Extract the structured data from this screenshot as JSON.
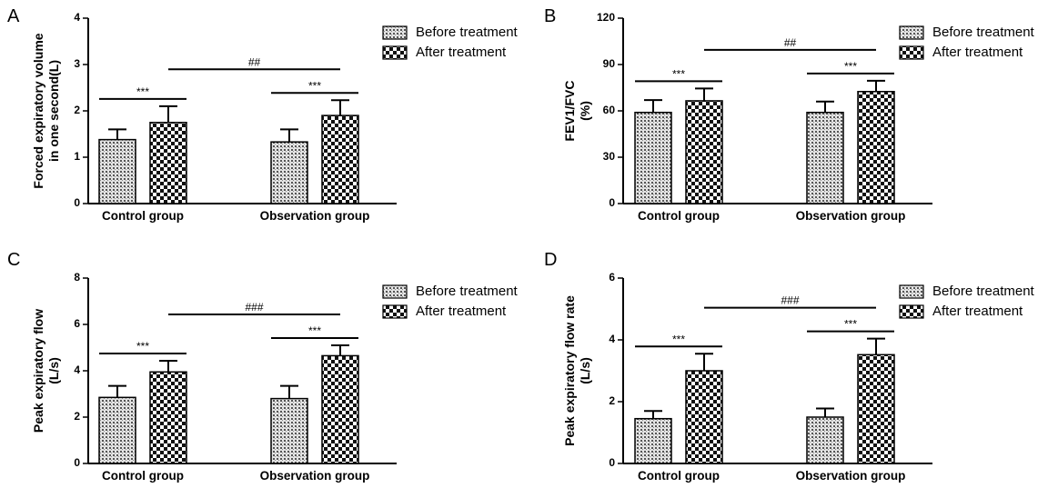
{
  "legend": {
    "before": "Before treatment",
    "after": "After treatment"
  },
  "chart_data": [
    {
      "panel": "A",
      "type": "bar",
      "ylabel": [
        "Forced expiratory volume",
        "in one second(L)"
      ],
      "categories": [
        "Control group",
        "Observation group"
      ],
      "ylim": [
        0,
        4
      ],
      "yticks": [
        "0",
        "1",
        "2",
        "3",
        "4"
      ],
      "series": [
        {
          "name": "Before treatment",
          "pattern": "pat-before",
          "values": [
            1.38,
            1.33
          ],
          "errors": [
            0.22,
            0.27
          ]
        },
        {
          "name": "After treatment",
          "pattern": "pat-after",
          "values": [
            1.75,
            1.9
          ],
          "errors": [
            0.35,
            0.33
          ]
        }
      ],
      "within_sig": [
        "***",
        "***"
      ],
      "between_sig": "##"
    },
    {
      "panel": "B",
      "type": "bar",
      "ylabel": [
        "FEV1/FVC",
        "(%)"
      ],
      "categories": [
        "Control group",
        "Observation group"
      ],
      "ylim": [
        0,
        120
      ],
      "yticks": [
        "0",
        "30",
        "60",
        "90",
        "120"
      ],
      "series": [
        {
          "name": "Before treatment",
          "pattern": "pat-before",
          "values": [
            59,
            59
          ],
          "errors": [
            8,
            7
          ]
        },
        {
          "name": "After treatment",
          "pattern": "pat-after",
          "values": [
            66.5,
            72.5
          ],
          "errors": [
            8,
            7
          ]
        }
      ],
      "within_sig": [
        "***",
        "***"
      ],
      "between_sig": "##"
    },
    {
      "panel": "C",
      "type": "bar",
      "ylabel": [
        "Peak expiratory flow",
        "(L/s)"
      ],
      "categories": [
        "Control group",
        "Observation group"
      ],
      "ylim": [
        0,
        8
      ],
      "yticks": [
        "0",
        "2",
        "4",
        "6",
        "8"
      ],
      "series": [
        {
          "name": "Before treatment",
          "pattern": "pat-before",
          "values": [
            2.85,
            2.8
          ],
          "errors": [
            0.5,
            0.55
          ]
        },
        {
          "name": "After treatment",
          "pattern": "pat-after",
          "values": [
            3.95,
            4.65
          ],
          "errors": [
            0.48,
            0.45
          ]
        }
      ],
      "within_sig": [
        "***",
        "***"
      ],
      "between_sig": "###"
    },
    {
      "panel": "D",
      "type": "bar",
      "ylabel": [
        "Peak expiratory flow rate",
        "(L/s)"
      ],
      "categories": [
        "Control group",
        "Observation group"
      ],
      "ylim": [
        0,
        6
      ],
      "yticks": [
        "0",
        "2",
        "4",
        "6"
      ],
      "series": [
        {
          "name": "Before treatment",
          "pattern": "pat-before",
          "values": [
            1.45,
            1.5
          ],
          "errors": [
            0.25,
            0.28
          ]
        },
        {
          "name": "After treatment",
          "pattern": "pat-after",
          "values": [
            3.0,
            3.52
          ],
          "errors": [
            0.55,
            0.52
          ]
        }
      ],
      "within_sig": [
        "***",
        "***"
      ],
      "between_sig": "###"
    }
  ]
}
